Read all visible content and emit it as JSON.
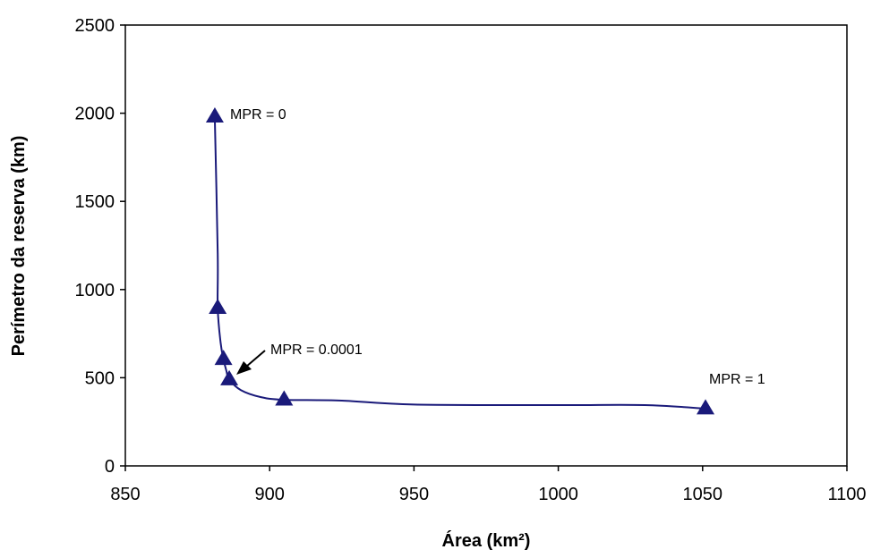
{
  "chart_data": {
    "type": "scatter",
    "xlabel": "Área (km²)",
    "ylabel": "Perímetro da reserva (km)",
    "xlim": [
      850,
      1100
    ],
    "ylim": [
      0,
      2500
    ],
    "x_ticks": [
      850,
      900,
      950,
      1000,
      1050,
      1100
    ],
    "y_ticks": [
      0,
      500,
      1000,
      1500,
      2000,
      2500
    ],
    "grid": false,
    "legend": "none",
    "series": [
      {
        "points": [
          {
            "x": 881,
            "y": 1980
          },
          {
            "x": 882,
            "y": 895
          },
          {
            "x": 884,
            "y": 605
          },
          {
            "x": 886,
            "y": 490
          },
          {
            "x": 905,
            "y": 375
          },
          {
            "x": 1051,
            "y": 325
          }
        ],
        "color": "#1a1a7a"
      }
    ],
    "curve": [
      [
        881,
        1980
      ],
      [
        882,
        1200
      ],
      [
        882,
        895
      ],
      [
        883,
        700
      ],
      [
        884,
        605
      ],
      [
        885,
        540
      ],
      [
        886,
        490
      ],
      [
        890,
        430
      ],
      [
        897,
        390
      ],
      [
        905,
        375
      ],
      [
        925,
        370
      ],
      [
        950,
        348
      ],
      [
        1000,
        345
      ],
      [
        1030,
        345
      ],
      [
        1051,
        325
      ]
    ],
    "annotations": [
      {
        "text": "MPR = 0"
      },
      {
        "text": "MPR = 0.0001"
      },
      {
        "text": "MPR = 1"
      }
    ]
  }
}
